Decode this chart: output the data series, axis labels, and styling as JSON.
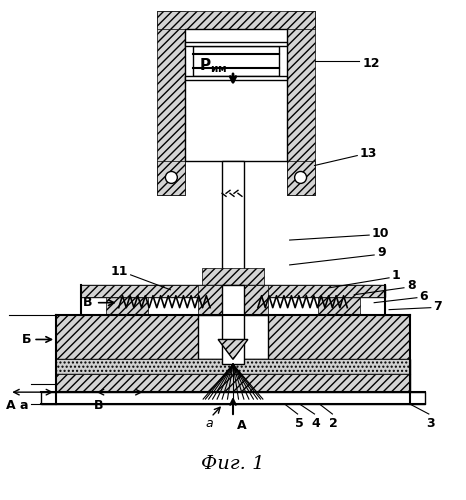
{
  "title": "Фиг. 1",
  "label_12": "12",
  "label_13": "13",
  "label_10": "10",
  "label_9": "9",
  "label_11": "11",
  "label_1": "1",
  "label_8": "8",
  "label_6": "6",
  "label_7": "7",
  "label_5": "5",
  "label_4": "4",
  "label_2": "2",
  "label_3": "3",
  "label_A": "A",
  "label_a": "a",
  "label_B": "В",
  "label_B2": "В",
  "label_Б": "Б",
  "label_Аа": "А а",
  "label_Pим": "Р им",
  "hatch_color": "#000000",
  "bg_color": "#ffffff",
  "line_color": "#000000",
  "fig_width": 4.66,
  "fig_height": 5.0,
  "dpi": 100
}
